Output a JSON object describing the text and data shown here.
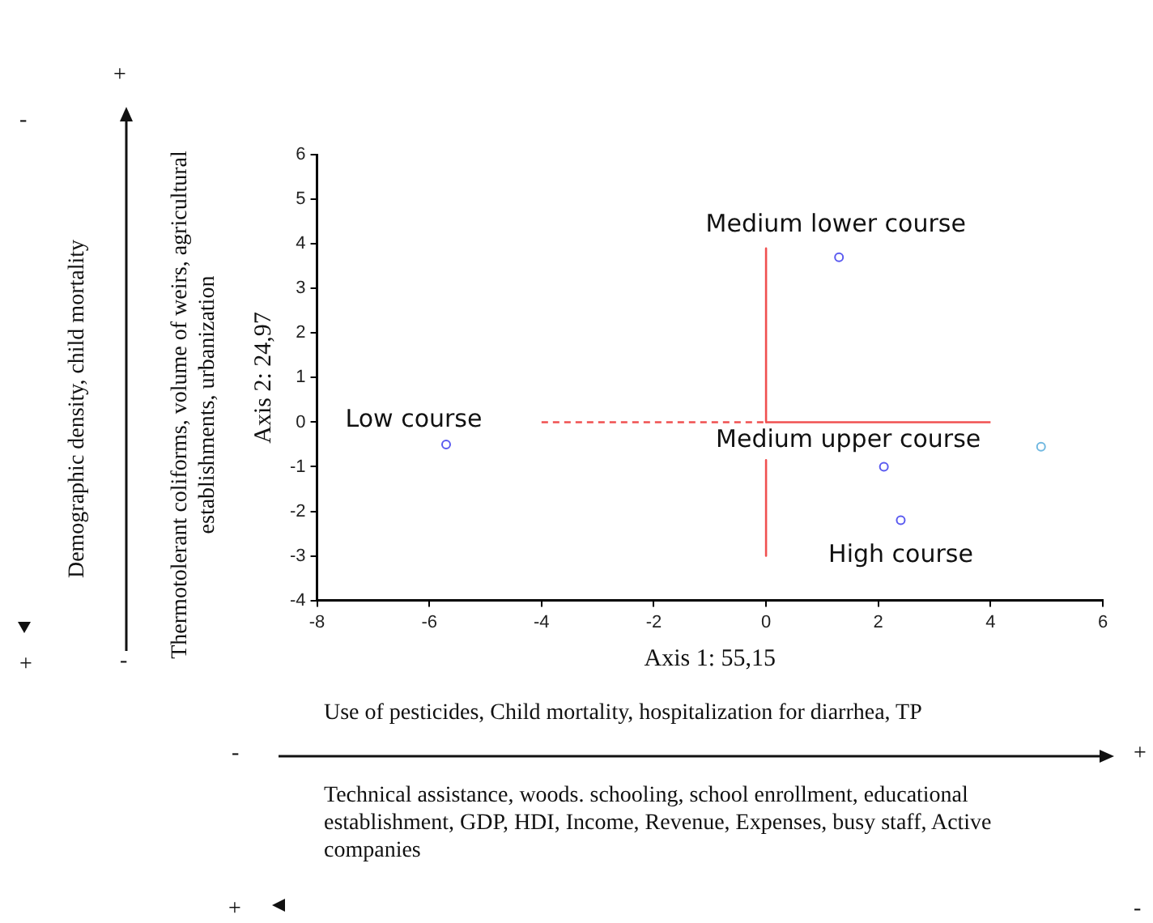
{
  "chart_data": {
    "type": "scatter",
    "xlabel": "Axis 1: 55,15",
    "ylabel": "Axis 2: 24,97",
    "xlim": [
      -8,
      6
    ],
    "xticks": [
      -8,
      -6,
      -4,
      -2,
      0,
      2,
      4,
      6
    ],
    "ylim": [
      -4,
      6
    ],
    "yticks": [
      -4,
      -3,
      -2,
      -1,
      0,
      1,
      2,
      3,
      4,
      5,
      6
    ],
    "grid": false,
    "legend": false,
    "marker": "circle",
    "series": [
      {
        "x": [
          -5.7,
          1.3,
          2.1,
          2.4,
          4.9
        ],
        "values": [
          -0.5,
          3.7,
          -1.0,
          -2.2,
          -0.55
        ],
        "colors": [
          "#5a5af0",
          "#5a5af0",
          "#5a5af0",
          "#5a5af0",
          "#70b8e0"
        ]
      },
      {
        "type": "line",
        "x": [
          0,
          0
        ],
        "values": [
          3.9,
          0
        ],
        "color": "#f05050",
        "line_style": "solid",
        "marker": "none"
      },
      {
        "type": "line",
        "x": [
          0,
          0
        ],
        "values": [
          -0.85,
          -3
        ],
        "color": "#f05050",
        "line_style": "solid",
        "marker": "none"
      },
      {
        "type": "line",
        "x": [
          0,
          4
        ],
        "values": [
          0,
          0
        ],
        "color": "#f05050",
        "line_style": "solid",
        "marker": "none"
      },
      {
        "type": "line",
        "x": [
          -4,
          0
        ],
        "values": [
          0,
          0
        ],
        "color": "#f05050",
        "line_style": "dashed",
        "marker": "none"
      }
    ],
    "annotations": [
      {
        "text": "Medium lower course",
        "x": 1.3,
        "y": 3.7
      },
      {
        "text": "Low course",
        "x": -5.7,
        "y": -0.5
      },
      {
        "text": "Medium upper course",
        "x": 2.1,
        "y": -1.0
      },
      {
        "text": "High course",
        "x": 2.4,
        "y": -2.2
      },
      "Demographic density, child mortality",
      "Thermotolerant coliforms, volume of weirs, agricultural establishments, urbanization",
      "Use of pesticides, Child mortality, hospitalization for diarrhea, TP",
      "Technical assistance, woods. schooling, school enrollment, educational establishment, GDP, HDI, Income, Revenue, Expenses, busy staff, Active companies",
      "-",
      "+",
      "-",
      "+",
      "-",
      "+",
      "+",
      "-"
    ]
  }
}
